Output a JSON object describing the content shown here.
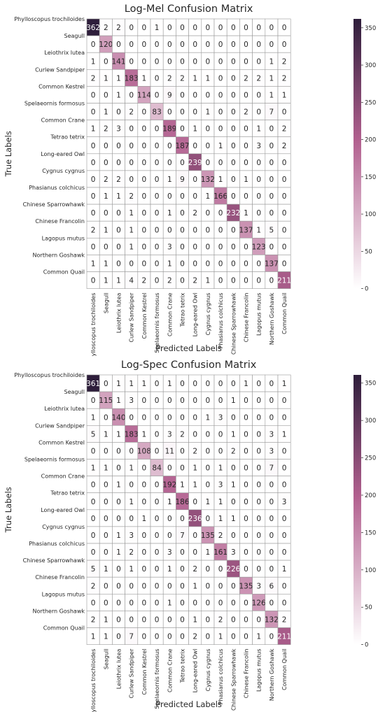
{
  "chart_data": [
    {
      "type": "heatmap",
      "title": "Log-Mel Confusion Matrix",
      "xlabel": "Predicted Labels",
      "ylabel": "True Labels",
      "categories": [
        "Phylloscopus trochiloides",
        "Seagull",
        "Leiothrix lutea",
        "Curlew Sandpiper",
        "Common Kestrel",
        "Spelaeornis formosus",
        "Common Crane",
        "Tetrao tetrix",
        "Long-eared Owl",
        "Cygnus cygnus",
        "Phasianus colchicus",
        "Chinese Sparrowhawk",
        "Chinese Francolin",
        "Lagopus mutus",
        "Northern Goshawk",
        "Common Quail"
      ],
      "matrix": [
        [
          362,
          2,
          2,
          0,
          0,
          1,
          0,
          0,
          0,
          0,
          0,
          0,
          0,
          0,
          0,
          0
        ],
        [
          0,
          120,
          0,
          0,
          0,
          0,
          0,
          0,
          0,
          0,
          0,
          0,
          0,
          0,
          0,
          0
        ],
        [
          1,
          0,
          141,
          0,
          0,
          0,
          0,
          0,
          0,
          0,
          0,
          0,
          0,
          0,
          1,
          2
        ],
        [
          2,
          1,
          1,
          183,
          1,
          0,
          2,
          2,
          1,
          1,
          0,
          0,
          2,
          2,
          1,
          2
        ],
        [
          0,
          0,
          1,
          0,
          114,
          0,
          9,
          0,
          0,
          0,
          0,
          0,
          0,
          0,
          1,
          1
        ],
        [
          0,
          1,
          0,
          2,
          0,
          83,
          0,
          0,
          0,
          1,
          0,
          0,
          2,
          0,
          7,
          0
        ],
        [
          1,
          2,
          3,
          0,
          0,
          0,
          189,
          0,
          1,
          0,
          0,
          0,
          0,
          1,
          0,
          2
        ],
        [
          0,
          0,
          0,
          0,
          0,
          0,
          0,
          187,
          0,
          0,
          1,
          0,
          0,
          3,
          0,
          2
        ],
        [
          0,
          0,
          0,
          0,
          0,
          0,
          0,
          0,
          239,
          0,
          0,
          0,
          0,
          0,
          0,
          0
        ],
        [
          0,
          2,
          2,
          0,
          0,
          0,
          1,
          9,
          0,
          132,
          1,
          0,
          1,
          0,
          0,
          0
        ],
        [
          0,
          1,
          1,
          2,
          0,
          0,
          0,
          0,
          0,
          1,
          166,
          0,
          0,
          0,
          0,
          0
        ],
        [
          0,
          0,
          0,
          1,
          0,
          0,
          1,
          0,
          2,
          0,
          0,
          232,
          1,
          0,
          0,
          0
        ],
        [
          2,
          1,
          0,
          1,
          0,
          0,
          0,
          0,
          0,
          0,
          0,
          0,
          137,
          1,
          5,
          0
        ],
        [
          0,
          0,
          0,
          1,
          0,
          0,
          3,
          0,
          0,
          0,
          0,
          0,
          0,
          123,
          0,
          0
        ],
        [
          1,
          1,
          0,
          0,
          0,
          0,
          1,
          0,
          0,
          0,
          0,
          0,
          0,
          0,
          137,
          0
        ],
        [
          0,
          1,
          1,
          4,
          2,
          0,
          2,
          0,
          2,
          1,
          0,
          0,
          0,
          0,
          0,
          211
        ]
      ],
      "colorbar_ticks": [
        0,
        50,
        100,
        150,
        200,
        250,
        300,
        350
      ],
      "value_range": [
        0,
        362
      ],
      "colors": {
        "low": "#ffffff",
        "mid": "#b2608f",
        "high": "#2e1e3b"
      },
      "grid": true
    },
    {
      "type": "heatmap",
      "title": "Log-Spec Confusion Matrix",
      "xlabel": "Predicted Labels",
      "ylabel": "True Labels",
      "categories": [
        "Phylloscopus trochiloides",
        "Seagull",
        "Leiothrix lutea",
        "Curlew Sandpiper",
        "Common Kestrel",
        "Spelaeornis formosus",
        "Common Crane",
        "Tetrao tetrix",
        "Long-eared Owl",
        "Cygnus cygnus",
        "Phasianus colchicus",
        "Chinese Sparrowhawk",
        "Chinese Francolin",
        "Lagopus mutus",
        "Northern Goshawk",
        "Common Quail"
      ],
      "matrix": [
        [
          361,
          0,
          1,
          1,
          1,
          0,
          1,
          0,
          0,
          0,
          0,
          0,
          1,
          0,
          0,
          1
        ],
        [
          0,
          115,
          1,
          3,
          0,
          0,
          0,
          0,
          0,
          0,
          0,
          1,
          0,
          0,
          0,
          0
        ],
        [
          1,
          0,
          140,
          0,
          0,
          0,
          0,
          0,
          0,
          1,
          3,
          0,
          0,
          0,
          0,
          0
        ],
        [
          5,
          1,
          1,
          183,
          1,
          0,
          3,
          2,
          0,
          0,
          0,
          1,
          0,
          0,
          3,
          1
        ],
        [
          0,
          0,
          0,
          0,
          108,
          0,
          11,
          0,
          2,
          0,
          0,
          2,
          0,
          0,
          3,
          0
        ],
        [
          1,
          1,
          0,
          1,
          0,
          84,
          0,
          0,
          1,
          0,
          1,
          0,
          0,
          0,
          7,
          0
        ],
        [
          0,
          0,
          1,
          0,
          0,
          0,
          192,
          1,
          1,
          0,
          3,
          1,
          0,
          0,
          0,
          0
        ],
        [
          0,
          0,
          0,
          1,
          0,
          0,
          1,
          186,
          0,
          1,
          1,
          0,
          0,
          0,
          0,
          3
        ],
        [
          0,
          0,
          0,
          0,
          1,
          0,
          0,
          0,
          236,
          0,
          1,
          1,
          0,
          0,
          0,
          0
        ],
        [
          0,
          0,
          1,
          3,
          0,
          0,
          0,
          7,
          0,
          135,
          2,
          0,
          0,
          0,
          0,
          0
        ],
        [
          0,
          0,
          1,
          2,
          0,
          0,
          3,
          0,
          0,
          1,
          161,
          3,
          0,
          0,
          0,
          0
        ],
        [
          5,
          1,
          0,
          1,
          0,
          0,
          1,
          0,
          2,
          0,
          0,
          226,
          0,
          0,
          0,
          1
        ],
        [
          2,
          0,
          0,
          0,
          0,
          0,
          0,
          0,
          1,
          0,
          0,
          0,
          135,
          3,
          6,
          0
        ],
        [
          0,
          0,
          0,
          0,
          0,
          0,
          1,
          0,
          0,
          0,
          0,
          0,
          0,
          126,
          0,
          0
        ],
        [
          2,
          1,
          0,
          0,
          0,
          0,
          0,
          0,
          1,
          0,
          2,
          0,
          0,
          0,
          132,
          2
        ],
        [
          1,
          1,
          0,
          7,
          0,
          0,
          0,
          0,
          2,
          0,
          1,
          0,
          0,
          1,
          0,
          211
        ]
      ],
      "colorbar_ticks": [
        0,
        50,
        100,
        150,
        200,
        250,
        300,
        350
      ],
      "value_range": [
        0,
        361
      ],
      "colors": {
        "low": "#ffffff",
        "mid": "#b2608f",
        "high": "#2e1e3b"
      },
      "grid": true
    }
  ]
}
